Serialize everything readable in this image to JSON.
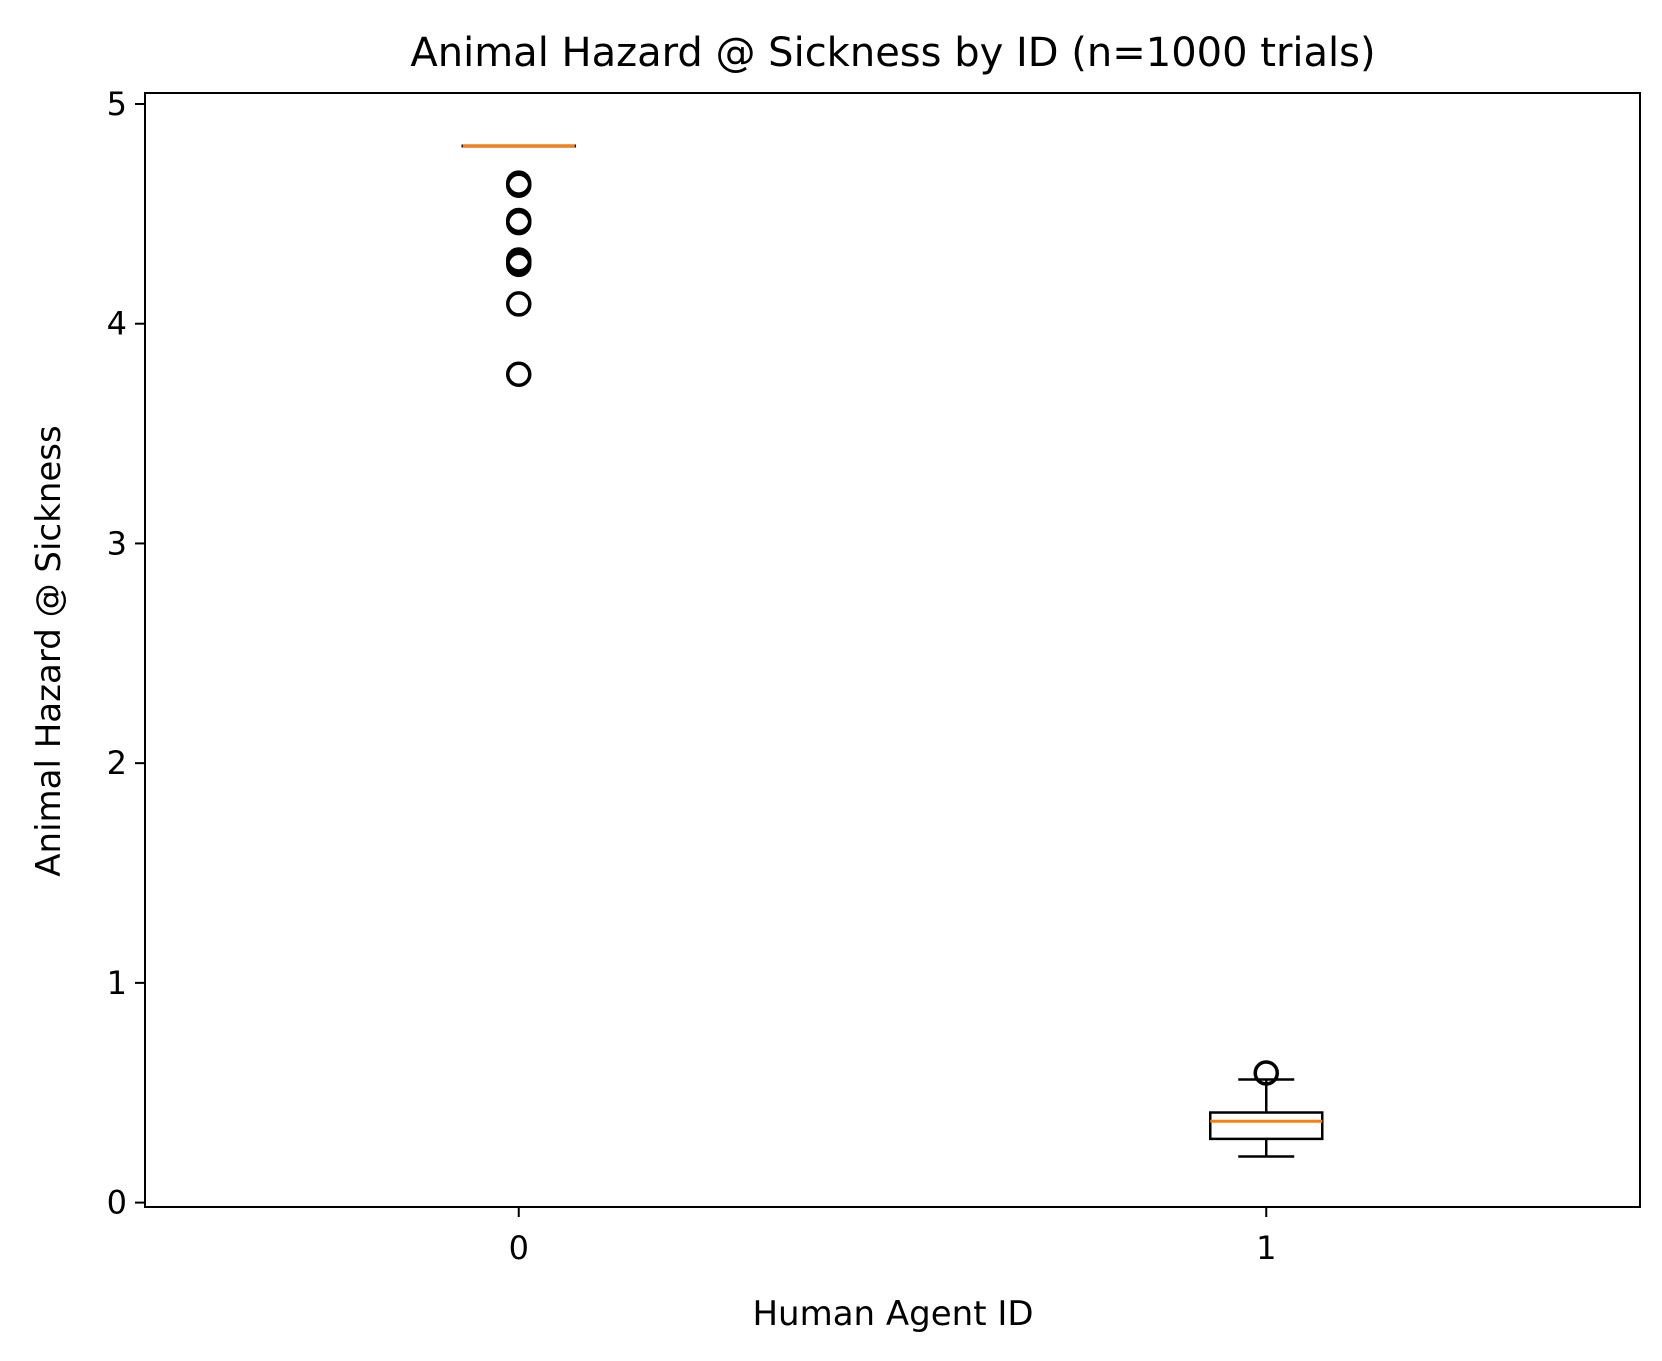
{
  "chart_data": {
    "type": "box",
    "title": "Animal Hazard @ Sickness by ID (n=1000 trials)",
    "xlabel": "Human Agent ID",
    "ylabel": "Animal Hazard @ Sickness",
    "categories": [
      "0",
      "1"
    ],
    "ylim": [
      -0.02,
      5.05
    ],
    "yticks": [
      0,
      1,
      2,
      3,
      4,
      5
    ],
    "grid": false,
    "colors": {
      "box": "#000000",
      "median": "#ff7f0e",
      "flier": "#000000"
    },
    "boxes": [
      {
        "category": "0",
        "q1": 4.81,
        "median": 4.81,
        "q3": 4.81,
        "whisker_low": 4.81,
        "whisker_high": 4.81,
        "fliers": [
          4.64,
          4.63,
          4.47,
          4.46,
          4.29,
          4.28,
          4.27,
          4.09,
          3.77
        ]
      },
      {
        "category": "1",
        "q1": 0.29,
        "median": 0.37,
        "q3": 0.41,
        "whisker_low": 0.21,
        "whisker_high": 0.56,
        "fliers": [
          0.59
        ]
      }
    ]
  }
}
